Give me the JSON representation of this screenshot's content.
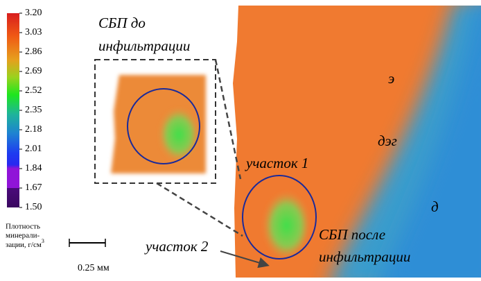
{
  "colorbar": {
    "range": [
      1.5,
      3.2
    ],
    "ticks": [
      {
        "value": 3.2,
        "label": "3.20"
      },
      {
        "value": 3.03,
        "label": "3.03"
      },
      {
        "value": 2.86,
        "label": "2.86"
      },
      {
        "value": 2.69,
        "label": "2.69"
      },
      {
        "value": 2.52,
        "label": "2.52"
      },
      {
        "value": 2.35,
        "label": "2.35"
      },
      {
        "value": 2.18,
        "label": "2.18"
      },
      {
        "value": 2.01,
        "label": "2.01"
      },
      {
        "value": 1.84,
        "label": "1.84"
      },
      {
        "value": 1.67,
        "label": "1.67"
      },
      {
        "value": 1.5,
        "label": "1.50"
      }
    ],
    "label_lines": [
      "Плотность",
      "минерали-",
      "зации, г/см"
    ],
    "label_sup": "3"
  },
  "annotations": {
    "inset_title": [
      "СБП до",
      "инфильтрации"
    ],
    "zone_e": "э",
    "zone_deg": "дэг",
    "zone_d": "д",
    "site_1": "участок 1",
    "site_2": "участок 2",
    "after_title": [
      "СБП после",
      "инфильтрации"
    ]
  },
  "scale_bar": {
    "label": "0.25 мм"
  }
}
